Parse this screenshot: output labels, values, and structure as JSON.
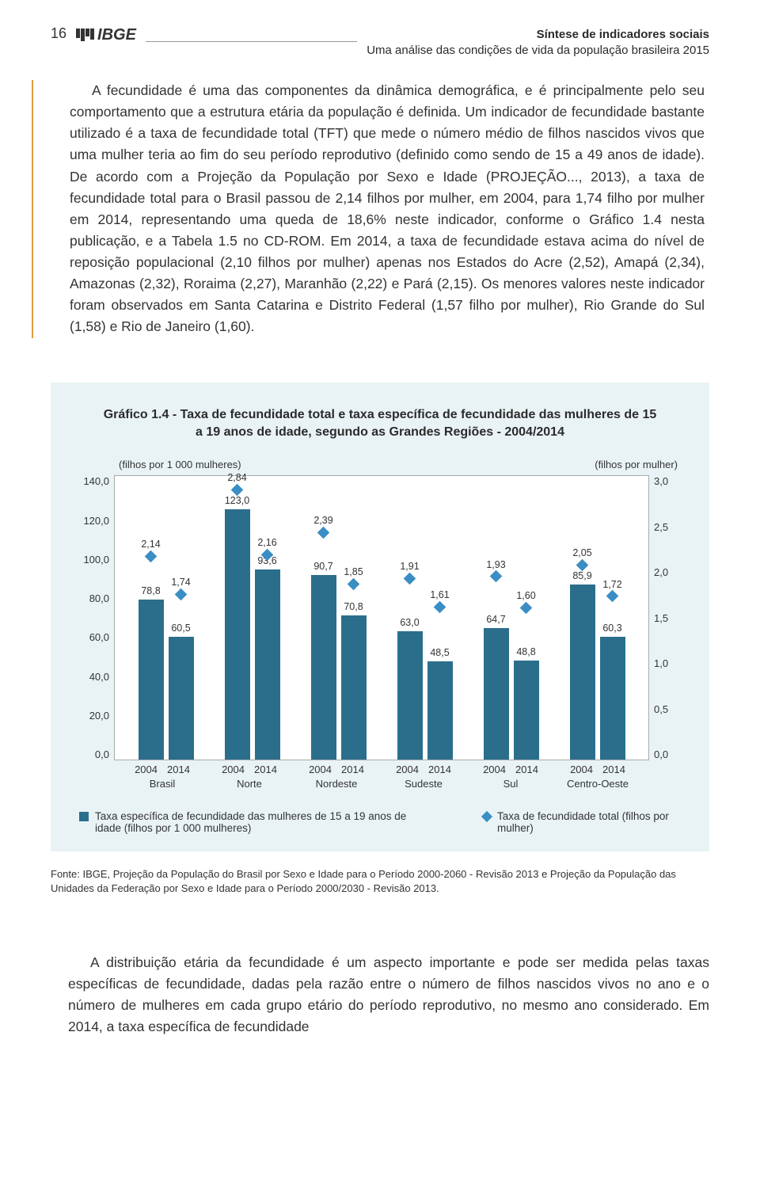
{
  "header": {
    "page_number": "16",
    "logo_text": "IBGE",
    "title_line1": "Síntese de indicadores sociais",
    "title_line2": "Uma análise das condições de vida da população brasileira 2015"
  },
  "paragraph1": "A fecundidade é uma das componentes da dinâmica demográfica, e é principalmente pelo seu comportamento que a estrutura etária da população é definida. Um indicador de fecundidade bastante utilizado é a taxa de fecundidade total (TFT) que mede o número médio de filhos nascidos vivos que uma mulher teria ao fim do seu período reprodutivo (definido como sendo de 15 a 49 anos de idade). De acordo com a Projeção da População por Sexo e Idade (PROJEÇÃO..., 2013), a taxa de fecundidade total para o Brasil passou de 2,14 filhos por mulher, em 2004, para 1,74 filho por mulher em 2014, representando uma queda de 18,6% neste indicador, conforme o Gráfico 1.4 nesta publicação, e a Tabela 1.5 no CD-ROM. Em 2014, a taxa de fecundidade estava acima do nível de reposição populacional (2,10 filhos por mulher) apenas nos Estados do Acre (2,52), Amapá (2,34), Amazonas (2,32), Roraima (2,27), Maranhão (2,22) e Pará (2,15). Os menores valores neste indicador foram observados em Santa Catarina e Distrito Federal (1,57 filho por mulher), Rio Grande do Sul (1,58) e Rio de Janeiro (1,60).",
  "chart": {
    "title": "Gráfico 1.4 - Taxa de fecundidade total e taxa específica de fecundidade das mulheres de 15 a 19 anos de idade, segundo as Grandes Regiões - 2004/2014",
    "left_axis_title": "(filhos por 1 000 mulheres)",
    "right_axis_title": "(filhos por mulher)",
    "background_color": "#e9f3f6",
    "plot_bg": "#ffffff",
    "bar_color": "#2b6e8c",
    "diamond_color": "#3a8ec4",
    "left_max": 140,
    "right_max": 3.0,
    "left_ticks": [
      "140,0",
      "120,0",
      "100,0",
      "80,0",
      "60,0",
      "40,0",
      "20,0",
      "0,0"
    ],
    "right_ticks": [
      "3,0",
      "2,5",
      "2,0",
      "1,5",
      "1,0",
      "0,5",
      "0,0"
    ],
    "groups": [
      {
        "name": "Brasil",
        "years": [
          "2004",
          "2014"
        ],
        "bars": [
          {
            "v": 78.8,
            "label": "78,8"
          },
          {
            "v": 60.5,
            "label": "60,5"
          }
        ],
        "points": [
          {
            "v": 2.14,
            "label": "2,14"
          },
          {
            "v": 1.74,
            "label": "1,74"
          }
        ]
      },
      {
        "name": "Norte",
        "years": [
          "2004",
          "2014"
        ],
        "bars": [
          {
            "v": 123.0,
            "label": "123,0"
          },
          {
            "v": 93.6,
            "label": "93,6"
          }
        ],
        "points": [
          {
            "v": 2.84,
            "label": "2,84"
          },
          {
            "v": 2.16,
            "label": "2,16"
          }
        ]
      },
      {
        "name": "Nordeste",
        "years": [
          "2004",
          "2014"
        ],
        "bars": [
          {
            "v": 90.7,
            "label": "90,7"
          },
          {
            "v": 70.8,
            "label": "70,8"
          }
        ],
        "points": [
          {
            "v": 2.39,
            "label": "2,39"
          },
          {
            "v": 1.85,
            "label": "1,85"
          }
        ]
      },
      {
        "name": "Sudeste",
        "years": [
          "2004",
          "2014"
        ],
        "bars": [
          {
            "v": 63.0,
            "label": "63,0"
          },
          {
            "v": 48.5,
            "label": "48,5"
          }
        ],
        "points": [
          {
            "v": 1.91,
            "label": "1,91"
          },
          {
            "v": 1.61,
            "label": "1,61"
          }
        ]
      },
      {
        "name": "Sul",
        "years": [
          "2004",
          "2014"
        ],
        "bars": [
          {
            "v": 64.7,
            "label": "64,7"
          },
          {
            "v": 48.8,
            "label": "48,8"
          }
        ],
        "points": [
          {
            "v": 1.93,
            "label": "1,93"
          },
          {
            "v": 1.6,
            "label": "1,60"
          }
        ]
      },
      {
        "name": "Centro-Oeste",
        "years": [
          "2004",
          "2014"
        ],
        "bars": [
          {
            "v": 85.9,
            "label": "85,9"
          },
          {
            "v": 60.3,
            "label": "60,3"
          }
        ],
        "points": [
          {
            "v": 2.05,
            "label": "2,05"
          },
          {
            "v": 1.72,
            "label": "1,72"
          }
        ]
      }
    ],
    "legend_bar": "Taxa específica de fecundidade das mulheres de 15 a 19 anos de idade (filhos por 1 000 mulheres)",
    "legend_point": "Taxa de fecundidade total (filhos por mulher)",
    "source": "Fonte: IBGE, Projeção da População do Brasil por Sexo e Idade para o Período 2000-2060 - Revisão 2013 e Projeção da População das Unidades da Federação por Sexo e Idade para o Período 2000/2030 - Revisão 2013."
  },
  "paragraph2": "A distribuição etária da fecundidade é um aspecto importante e pode ser medida pelas taxas específicas de fecundidade, dadas pela razão entre o número de filhos nascidos vivos no ano e o número de mulheres em cada grupo etário do período reprodutivo, no mesmo ano considerado. Em 2014, a taxa específica de fecundidade"
}
